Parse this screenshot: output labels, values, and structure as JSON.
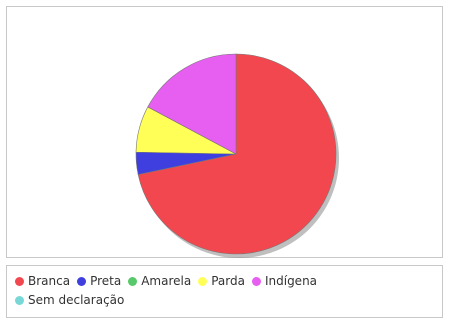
{
  "chart_data": {
    "type": "pie",
    "title": "",
    "categories": [
      "Branca",
      "Preta",
      "Amarela",
      "Parda",
      "Indígena",
      "Sem declaração"
    ],
    "values": [
      71.7,
      3.6,
      0,
      7.5,
      17.2,
      0
    ],
    "colors": [
      "#f2474f",
      "#3f3fe0",
      "#58c96a",
      "#ffff57",
      "#e65ff0",
      "#78d8d8"
    ],
    "legend_position": "bottom",
    "start_angle_deg": 0,
    "direction": "clockwise",
    "shadow": true
  }
}
